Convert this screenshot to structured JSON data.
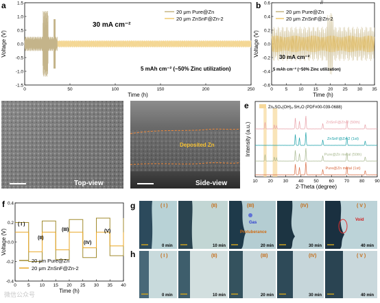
{
  "panels": {
    "a": {
      "letter": "a",
      "annotation_current": "30 mA cm⁻²",
      "annotation_capacity": "5 mAh cm⁻² (~50% Zinc utilization)",
      "legend": [
        "20 μm Pure@Zn",
        "20 μm ZnSnF@Zn-2"
      ],
      "colors": {
        "pure": "#d4c7a1",
        "znsnf": "#f4d793"
      }
    },
    "b": {
      "letter": "b",
      "annotation_current": "30 mA cm⁻²",
      "annotation_capacity": "5 mAh cm⁻² (~50% Zinc utilization)",
      "legend": [
        "20 μm Pure@Zn",
        "20 μm ZnSnF@Zn-2"
      ],
      "axis_break": "//"
    },
    "c": {
      "letter": "c",
      "label": "Top-view"
    },
    "d": {
      "letter": "d",
      "label": "Side-view",
      "annotation": "Deposited Zn"
    },
    "e": {
      "letter": "e",
      "legend": "Zn₅SO₄(OH)₆·5H₂O (PDF#00-039-0688)",
      "traces": [
        {
          "name": "ZnSnF@Zn-2 (50th)",
          "color": "#e8a0a8"
        },
        {
          "name": "ZnSnF@Zn-2 (1st)",
          "color": "#1aa0a8"
        },
        {
          "name": "Pure@Zn metal (50th)",
          "color": "#a8b890"
        },
        {
          "name": "Pure@Zn metal (1st)",
          "color": "#d86a40"
        }
      ],
      "highlight_color": "#f6d89a"
    },
    "f": {
      "letter": "f",
      "stage_labels": [
        "( I )",
        "(II)",
        "(III)",
        "(IV)",
        "(V)"
      ],
      "legend": [
        "20 μm Pure@Zn",
        "20 μm ZnSnF@Zn-2"
      ]
    },
    "g": {
      "letter": "g",
      "frames": [
        {
          "roman": "( I )",
          "time": "0 min"
        },
        {
          "roman": "(II)",
          "time": "10 min"
        },
        {
          "roman": "(III)",
          "time": "20 min"
        },
        {
          "roman": "(IV)",
          "time": "30 min"
        },
        {
          "roman": "( V )",
          "time": "40 min"
        }
      ],
      "annotations": [
        "Gas",
        "Protuberance",
        "Void"
      ]
    },
    "h": {
      "letter": "h",
      "frames": [
        {
          "roman": "( I )",
          "time": "0 min"
        },
        {
          "roman": "(II)",
          "time": "10 min"
        },
        {
          "roman": "(III)",
          "time": "20 min"
        },
        {
          "roman": "(IV)",
          "time": "30 min"
        },
        {
          "roman": "( V )",
          "time": "40 min"
        }
      ]
    }
  },
  "watermark": "微信公众号",
  "chart_data": [
    {
      "panel": "a",
      "type": "line",
      "xlabel": "Time (h)",
      "ylabel": "Voltage (V)",
      "xlim": [
        0,
        250
      ],
      "ylim": [
        -1.5,
        1.5
      ],
      "xticks": [
        0,
        50,
        100,
        150,
        200,
        250
      ],
      "yticks": [
        -1.5,
        -1.0,
        -0.5,
        0.0,
        0.5,
        1.0,
        1.5
      ],
      "series": [
        {
          "name": "20 μm Pure@Zn",
          "x_end": 36,
          "amplitude": 0.6
        },
        {
          "name": "20 μm ZnSnF@Zn-2",
          "x_end": 250,
          "amplitude": 0.13
        }
      ]
    },
    {
      "panel": "b",
      "type": "line",
      "xlabel": "Time (h)",
      "ylabel": "Voltage (V)",
      "xlim": [
        0,
        35
      ],
      "ylim": [
        -0.6,
        0.6
      ],
      "xticks": [
        0,
        5,
        10,
        15,
        20,
        25,
        30,
        35
      ],
      "yticks": [
        -0.6,
        -0.4,
        -0.2,
        0.0,
        0.2,
        0.4,
        0.6
      ],
      "series": [
        {
          "name": "20 μm Pure@Zn",
          "amplitude": 0.25
        },
        {
          "name": "20 μm ZnSnF@Zn-2",
          "amplitude": 0.12
        }
      ]
    },
    {
      "panel": "e",
      "type": "line",
      "xlabel": "2-Theta (degree)",
      "ylabel": "Intensity (a.u.)",
      "xlim": [
        10,
        90
      ],
      "xticks": [
        10,
        20,
        30,
        40,
        50,
        60,
        70,
        80,
        90
      ],
      "highlight_ranges": [
        [
          15.5,
          17.5
        ],
        [
          21.5,
          24.5
        ]
      ],
      "peaks": [
        [
          36.3,
          1.0
        ],
        [
          39.0,
          0.7
        ],
        [
          43.2,
          1.2
        ],
        [
          54.3,
          0.5
        ],
        [
          70.1,
          0.8
        ],
        [
          82.1,
          0.4
        ]
      ],
      "sulfate_peaks": [
        [
          16.5,
          0.8
        ],
        [
          22.5,
          0.5
        ],
        [
          24.0,
          0.4
        ]
      ]
    },
    {
      "panel": "f",
      "type": "line",
      "xlabel": "Time (h)",
      "ylabel": "Voltage (V)",
      "xlim": [
        0,
        40
      ],
      "ylim": [
        -0.4,
        0.4
      ],
      "xticks": [
        0,
        5,
        10,
        15,
        20,
        25,
        30,
        35,
        40
      ],
      "yticks": [
        -0.4,
        -0.2,
        0.0,
        0.2,
        0.4
      ],
      "series": [
        {
          "name": "20 μm Pure@Zn",
          "plateau": 0.2
        },
        {
          "name": "20 μm ZnSnF@Zn-2",
          "plateau": 0.1
        }
      ]
    }
  ]
}
